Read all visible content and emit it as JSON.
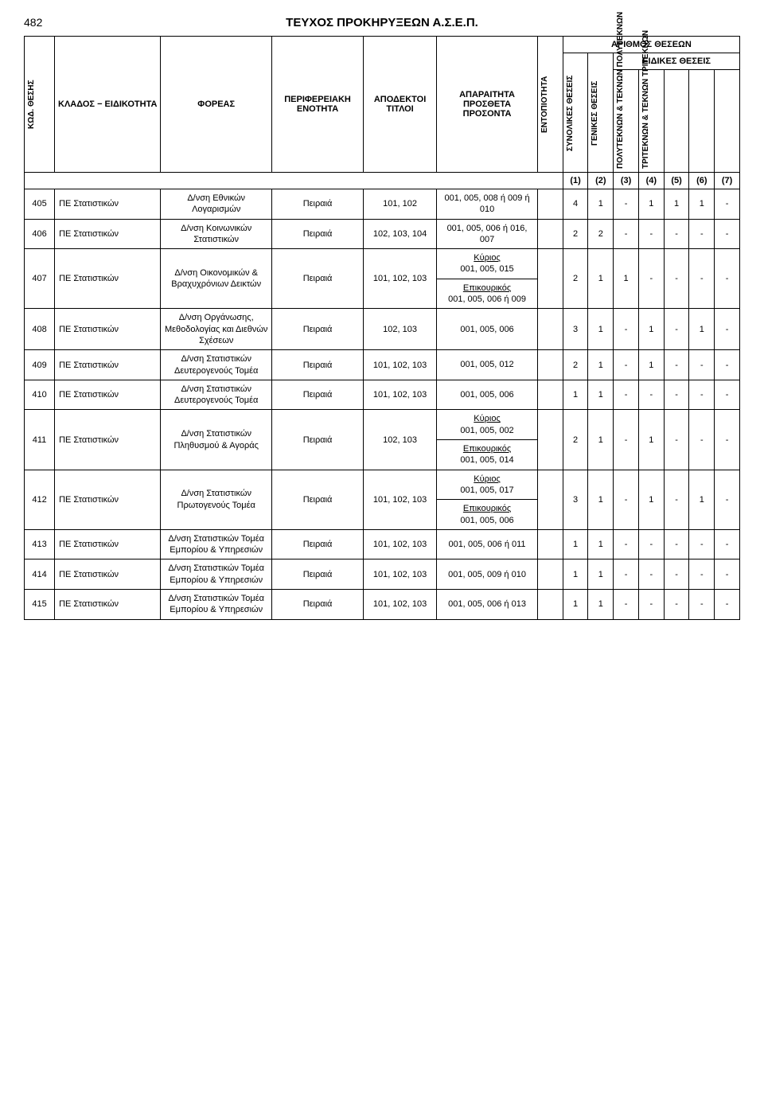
{
  "page_number": "482",
  "header_title": "ΤΕΥΧΟΣ ΠΡΟΚΗΡΥΞΕΩΝ Α.Σ.Ε.Π.",
  "table_headers": {
    "kod_thesis": "ΚΩΔ. ΘΕΣΗΣ",
    "klados": "ΚΛΑΔΟΣ − ΕΙΔΙΚΟΤΗΤΑ",
    "foreas": "ΦΟΡΕΑΣ",
    "periferiaki": "ΠΕΡΙΦΕΡΕΙΑΚΗ ΕΝΟΤΗΤΑ",
    "titloi": "ΑΠΟΔΕΚΤΟΙ ΤΙΤΛΟΙ",
    "aparaitita": "ΑΠΑΡΑΙΤΗΤΑ ΠΡΟΣΘΕΤΑ ΠΡΟΣΟΝΤΑ",
    "entopiotita": "ΕΝΤΟΠΙΟΤΗΤΑ",
    "arithmos": "ΑΡΙΘΜΟΣ ΘΕΣΕΩΝ",
    "eidikes": "ΕΙΔΙΚΕΣ ΘΕΣΕΙΣ",
    "synolikes": "ΣΥΝΟΛΙΚΕΣ ΘΕΣΕΙΣ",
    "genikes": "ΓΕΝΙΚΕΣ ΘΕΣΕΙΣ",
    "polyteknon": "ΠΟΛΥΤΕΚΝΩΝ & ΤΕΚΝΩΝ ΠΟΛΥΤΕΚΝΩΝ",
    "triteknon": "ΤΡΙΤΕΚΝΩΝ & ΤΕΚΝΩΝ ΤΡΙΤΕΚΝΩΝ"
  },
  "col_numbers": [
    "(1)",
    "(2)",
    "(3)",
    "(4)",
    "(5)",
    "(6)",
    "(7)"
  ],
  "rows": [
    {
      "kod": "405",
      "klados": "ΠΕ Στατιστικών",
      "foreas": "Δ/νση Εθνικών Λογαρισμών",
      "perif": "Πειραιά",
      "titloi": "101, 102",
      "aparait": "001, 005, 008 ή 009 ή 010",
      "nums": [
        "",
        "4",
        "1",
        "-",
        "1",
        "1",
        "1",
        "-"
      ]
    },
    {
      "kod": "406",
      "klados": "ΠΕ Στατιστικών",
      "foreas": "Δ/νση Κοινωνικών Στατιστικών",
      "perif": "Πειραιά",
      "titloi": "102, 103, 104",
      "aparait": "001, 005, 006 ή 016, 007",
      "nums": [
        "",
        "2",
        "2",
        "-",
        "-",
        "-",
        "-",
        "-"
      ]
    },
    {
      "kod": "407",
      "klados": "ΠΕ Στατιστικών",
      "foreas": "Δ/νση Οικονομικών & Βραχυχρόνιων Δεικτών",
      "perif": "Πειραιά",
      "titloi": "101, 102, 103",
      "aparait_kyrios": "Κύριος 001, 005, 015",
      "aparait_epik": "Επικουρικός 001, 005, 006 ή 009",
      "nums": [
        "",
        "2",
        "1",
        "1",
        "-",
        "-",
        "-",
        "-"
      ]
    },
    {
      "kod": "408",
      "klados": "ΠΕ Στατιστικών",
      "foreas": "Δ/νση Οργάνωσης, Μεθοδολογίας και Διεθνών Σχέσεων",
      "perif": "Πειραιά",
      "titloi": "102, 103",
      "aparait": "001, 005, 006",
      "nums": [
        "",
        "3",
        "1",
        "-",
        "1",
        "-",
        "1",
        "-"
      ]
    },
    {
      "kod": "409",
      "klados": "ΠΕ Στατιστικών",
      "foreas": "Δ/νση Στατιστικών Δευτερογενούς Τομέα",
      "perif": "Πειραιά",
      "titloi": "101, 102, 103",
      "aparait": "001, 005, 012",
      "nums": [
        "",
        "2",
        "1",
        "-",
        "1",
        "-",
        "-",
        "-"
      ]
    },
    {
      "kod": "410",
      "klados": "ΠΕ Στατιστικών",
      "foreas": "Δ/νση Στατιστικών Δευτερογενούς Τομέα",
      "perif": "Πειραιά",
      "titloi": "101, 102, 103",
      "aparait": "001, 005, 006",
      "nums": [
        "",
        "1",
        "1",
        "-",
        "-",
        "-",
        "-",
        "-"
      ]
    },
    {
      "kod": "411",
      "klados": "ΠΕ Στατιστικών",
      "foreas": "Δ/νση Στατιστικών Πληθυσμού & Αγοράς",
      "perif": "Πειραιά",
      "titloi": "102, 103",
      "aparait_kyrios": "Κύριος 001, 005, 002",
      "aparait_epik": "Επικουρικός 001, 005, 014",
      "nums": [
        "",
        "2",
        "1",
        "-",
        "1",
        "-",
        "-",
        "-"
      ]
    },
    {
      "kod": "412",
      "klados": "ΠΕ Στατιστικών",
      "foreas": "Δ/νση Στατιστικών Πρωτογενούς Τομέα",
      "perif": "Πειραιά",
      "titloi": "101, 102, 103",
      "aparait_kyrios": "Κύριος 001, 005, 017",
      "aparait_epik": "Επικουρικός 001, 005, 006",
      "nums": [
        "",
        "3",
        "1",
        "-",
        "1",
        "-",
        "1",
        "-"
      ]
    },
    {
      "kod": "413",
      "klados": "ΠΕ Στατιστικών",
      "foreas": "Δ/νση Στατιστικών Τομέα Εμπορίου & Υπηρεσιών",
      "perif": "Πειραιά",
      "titloi": "101, 102, 103",
      "aparait": "001, 005, 006 ή 011",
      "nums": [
        "",
        "1",
        "1",
        "-",
        "-",
        "-",
        "-",
        "-"
      ]
    },
    {
      "kod": "414",
      "klados": "ΠΕ Στατιστικών",
      "foreas": "Δ/νση Στατιστικών Τομέα Εμπορίου & Υπηρεσιών",
      "perif": "Πειραιά",
      "titloi": "101, 102, 103",
      "aparait": "001, 005, 009 ή 010",
      "nums": [
        "",
        "1",
        "1",
        "-",
        "-",
        "-",
        "-",
        "-"
      ]
    },
    {
      "kod": "415",
      "klados": "ΠΕ Στατιστικών",
      "foreas": "Δ/νση Στατιστικών Τομέα Εμπορίου & Υπηρεσιών",
      "perif": "Πειραιά",
      "titloi": "101, 102, 103",
      "aparait": "001, 005, 006 ή 013",
      "nums": [
        "",
        "1",
        "1",
        "-",
        "-",
        "-",
        "-",
        "-"
      ]
    }
  ],
  "labels": {
    "kyrios": "Κύριος",
    "epikourikos": "Επικουρικός"
  }
}
